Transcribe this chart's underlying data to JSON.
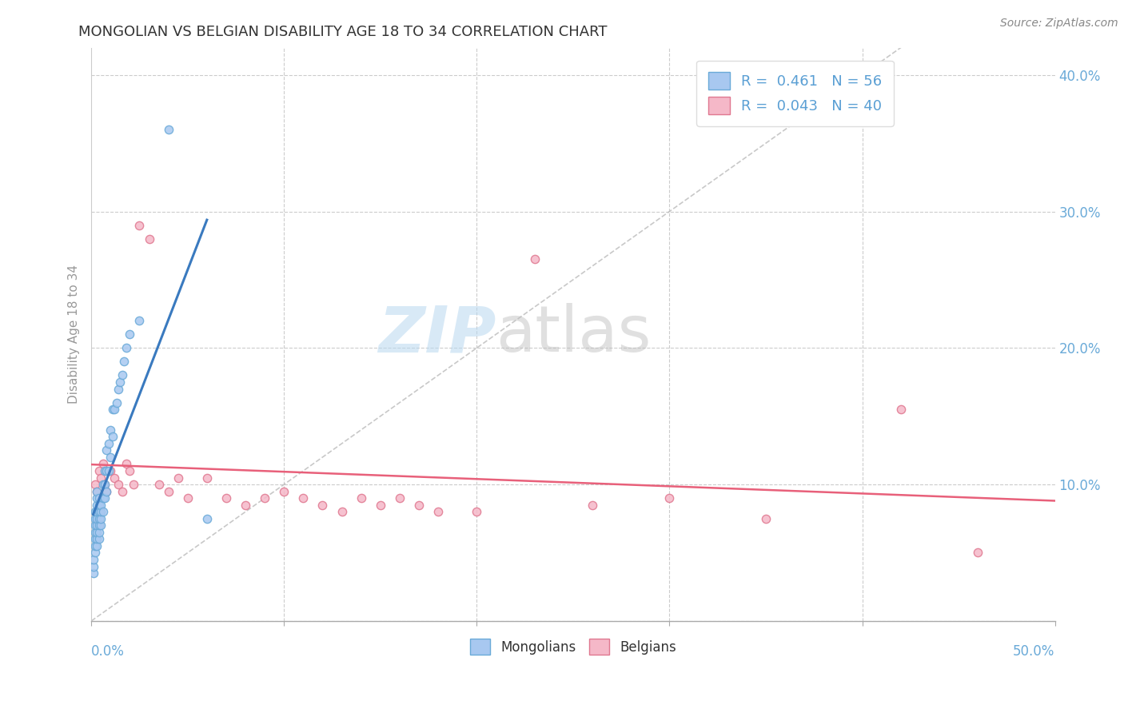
{
  "title": "MONGOLIAN VS BELGIAN DISABILITY AGE 18 TO 34 CORRELATION CHART",
  "source": "Source: ZipAtlas.com",
  "ylabel": "Disability Age 18 to 34",
  "xlim": [
    0.0,
    0.5
  ],
  "ylim": [
    0.0,
    0.42
  ],
  "ytick_vals": [
    0.1,
    0.2,
    0.3,
    0.4
  ],
  "ytick_labels": [
    "10.0%",
    "20.0%",
    "30.0%",
    "40.0%"
  ],
  "mongolian_R": 0.461,
  "mongolian_N": 56,
  "belgian_R": 0.043,
  "belgian_N": 40,
  "mongolian_color": "#a8c8f0",
  "mongolian_edge": "#6aaad8",
  "belgian_color": "#f5b8c8",
  "belgian_edge": "#e07890",
  "trend_mongolian_color": "#3a7abf",
  "trend_belgian_color": "#e8607a",
  "background_color": "#ffffff",
  "grid_color": "#cccccc",
  "mongolian_x": [
    0.001,
    0.001,
    0.001,
    0.002,
    0.002,
    0.002,
    0.002,
    0.002,
    0.002,
    0.002,
    0.003,
    0.003,
    0.003,
    0.003,
    0.003,
    0.003,
    0.003,
    0.003,
    0.003,
    0.004,
    0.004,
    0.004,
    0.004,
    0.004,
    0.004,
    0.004,
    0.005,
    0.005,
    0.005,
    0.005,
    0.006,
    0.006,
    0.006,
    0.007,
    0.007,
    0.007,
    0.008,
    0.008,
    0.008,
    0.009,
    0.009,
    0.01,
    0.01,
    0.011,
    0.011,
    0.012,
    0.013,
    0.014,
    0.015,
    0.016,
    0.017,
    0.018,
    0.02,
    0.025,
    0.04,
    0.06
  ],
  "mongolian_y": [
    0.035,
    0.04,
    0.045,
    0.05,
    0.055,
    0.06,
    0.065,
    0.07,
    0.075,
    0.08,
    0.055,
    0.06,
    0.065,
    0.07,
    0.075,
    0.08,
    0.085,
    0.09,
    0.095,
    0.06,
    0.065,
    0.07,
    0.075,
    0.08,
    0.085,
    0.09,
    0.07,
    0.075,
    0.08,
    0.085,
    0.08,
    0.09,
    0.1,
    0.09,
    0.1,
    0.11,
    0.095,
    0.11,
    0.125,
    0.11,
    0.13,
    0.12,
    0.14,
    0.135,
    0.155,
    0.155,
    0.16,
    0.17,
    0.175,
    0.18,
    0.19,
    0.2,
    0.21,
    0.22,
    0.36,
    0.075
  ],
  "belgian_x": [
    0.002,
    0.003,
    0.004,
    0.005,
    0.006,
    0.007,
    0.008,
    0.01,
    0.012,
    0.014,
    0.016,
    0.018,
    0.02,
    0.022,
    0.025,
    0.03,
    0.035,
    0.04,
    0.045,
    0.05,
    0.06,
    0.07,
    0.08,
    0.09,
    0.1,
    0.11,
    0.12,
    0.13,
    0.14,
    0.15,
    0.16,
    0.17,
    0.18,
    0.2,
    0.23,
    0.26,
    0.3,
    0.35,
    0.42,
    0.46
  ],
  "belgian_y": [
    0.1,
    0.095,
    0.11,
    0.105,
    0.115,
    0.1,
    0.095,
    0.11,
    0.105,
    0.1,
    0.095,
    0.115,
    0.11,
    0.1,
    0.29,
    0.28,
    0.1,
    0.095,
    0.105,
    0.09,
    0.105,
    0.09,
    0.085,
    0.09,
    0.095,
    0.09,
    0.085,
    0.08,
    0.09,
    0.085,
    0.09,
    0.085,
    0.08,
    0.08,
    0.265,
    0.085,
    0.09,
    0.075,
    0.155,
    0.05
  ]
}
